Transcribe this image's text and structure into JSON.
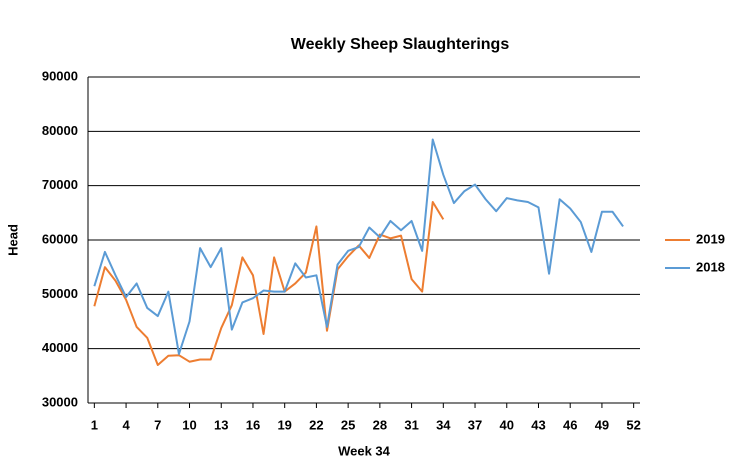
{
  "chart_data": {
    "type": "line",
    "title": "Weekly Sheep Slaughterings",
    "x_label": "Week 34",
    "y_label": "Head",
    "x": [
      1,
      2,
      3,
      4,
      5,
      6,
      7,
      8,
      9,
      10,
      11,
      12,
      13,
      14,
      15,
      16,
      17,
      18,
      19,
      20,
      21,
      22,
      23,
      24,
      25,
      26,
      27,
      28,
      29,
      30,
      31,
      32,
      33,
      34,
      35,
      36,
      37,
      38,
      39,
      40,
      41,
      42,
      43,
      44,
      45,
      46,
      47,
      48,
      49,
      50,
      51,
      52
    ],
    "xlim": [
      0.4,
      52.6
    ],
    "xticks": [
      1,
      4,
      7,
      10,
      13,
      16,
      19,
      22,
      25,
      28,
      31,
      34,
      37,
      40,
      43,
      46,
      49,
      52
    ],
    "ylim": [
      30000,
      90000
    ],
    "yticks": [
      30000,
      40000,
      50000,
      60000,
      70000,
      80000,
      90000
    ],
    "grid": true,
    "legend": "right",
    "series": [
      {
        "name": "2019",
        "color": "#ed7d31",
        "values": [
          47800,
          55000,
          52500,
          49000,
          44000,
          42000,
          37000,
          38700,
          38800,
          37600,
          38000,
          38000,
          43800,
          48000,
          56800,
          53500,
          42700,
          56800,
          50500,
          52000,
          54000,
          62500,
          43300,
          54600,
          57000,
          59000,
          56700,
          61000,
          60300,
          60800,
          52800,
          50500,
          67000,
          63800,
          null,
          null,
          null,
          null,
          null,
          null,
          null,
          null,
          null,
          null,
          null,
          null,
          null,
          null,
          null,
          null,
          null,
          null
        ]
      },
      {
        "name": "2018",
        "color": "#5b9bd5",
        "values": [
          51500,
          57800,
          53500,
          49500,
          52000,
          47500,
          46000,
          50500,
          39000,
          45000,
          58500,
          55000,
          58500,
          43500,
          48500,
          49300,
          50700,
          50500,
          50500,
          55700,
          53100,
          53500,
          44000,
          55500,
          58000,
          58700,
          62300,
          60500,
          63500,
          61800,
          63500,
          58000,
          78500,
          72000,
          66800,
          69000,
          70200,
          67500,
          65300,
          67700,
          67300,
          67000,
          66000,
          53800,
          67500,
          65800,
          63300,
          57800,
          65200,
          65200,
          62500,
          null
        ]
      }
    ]
  }
}
